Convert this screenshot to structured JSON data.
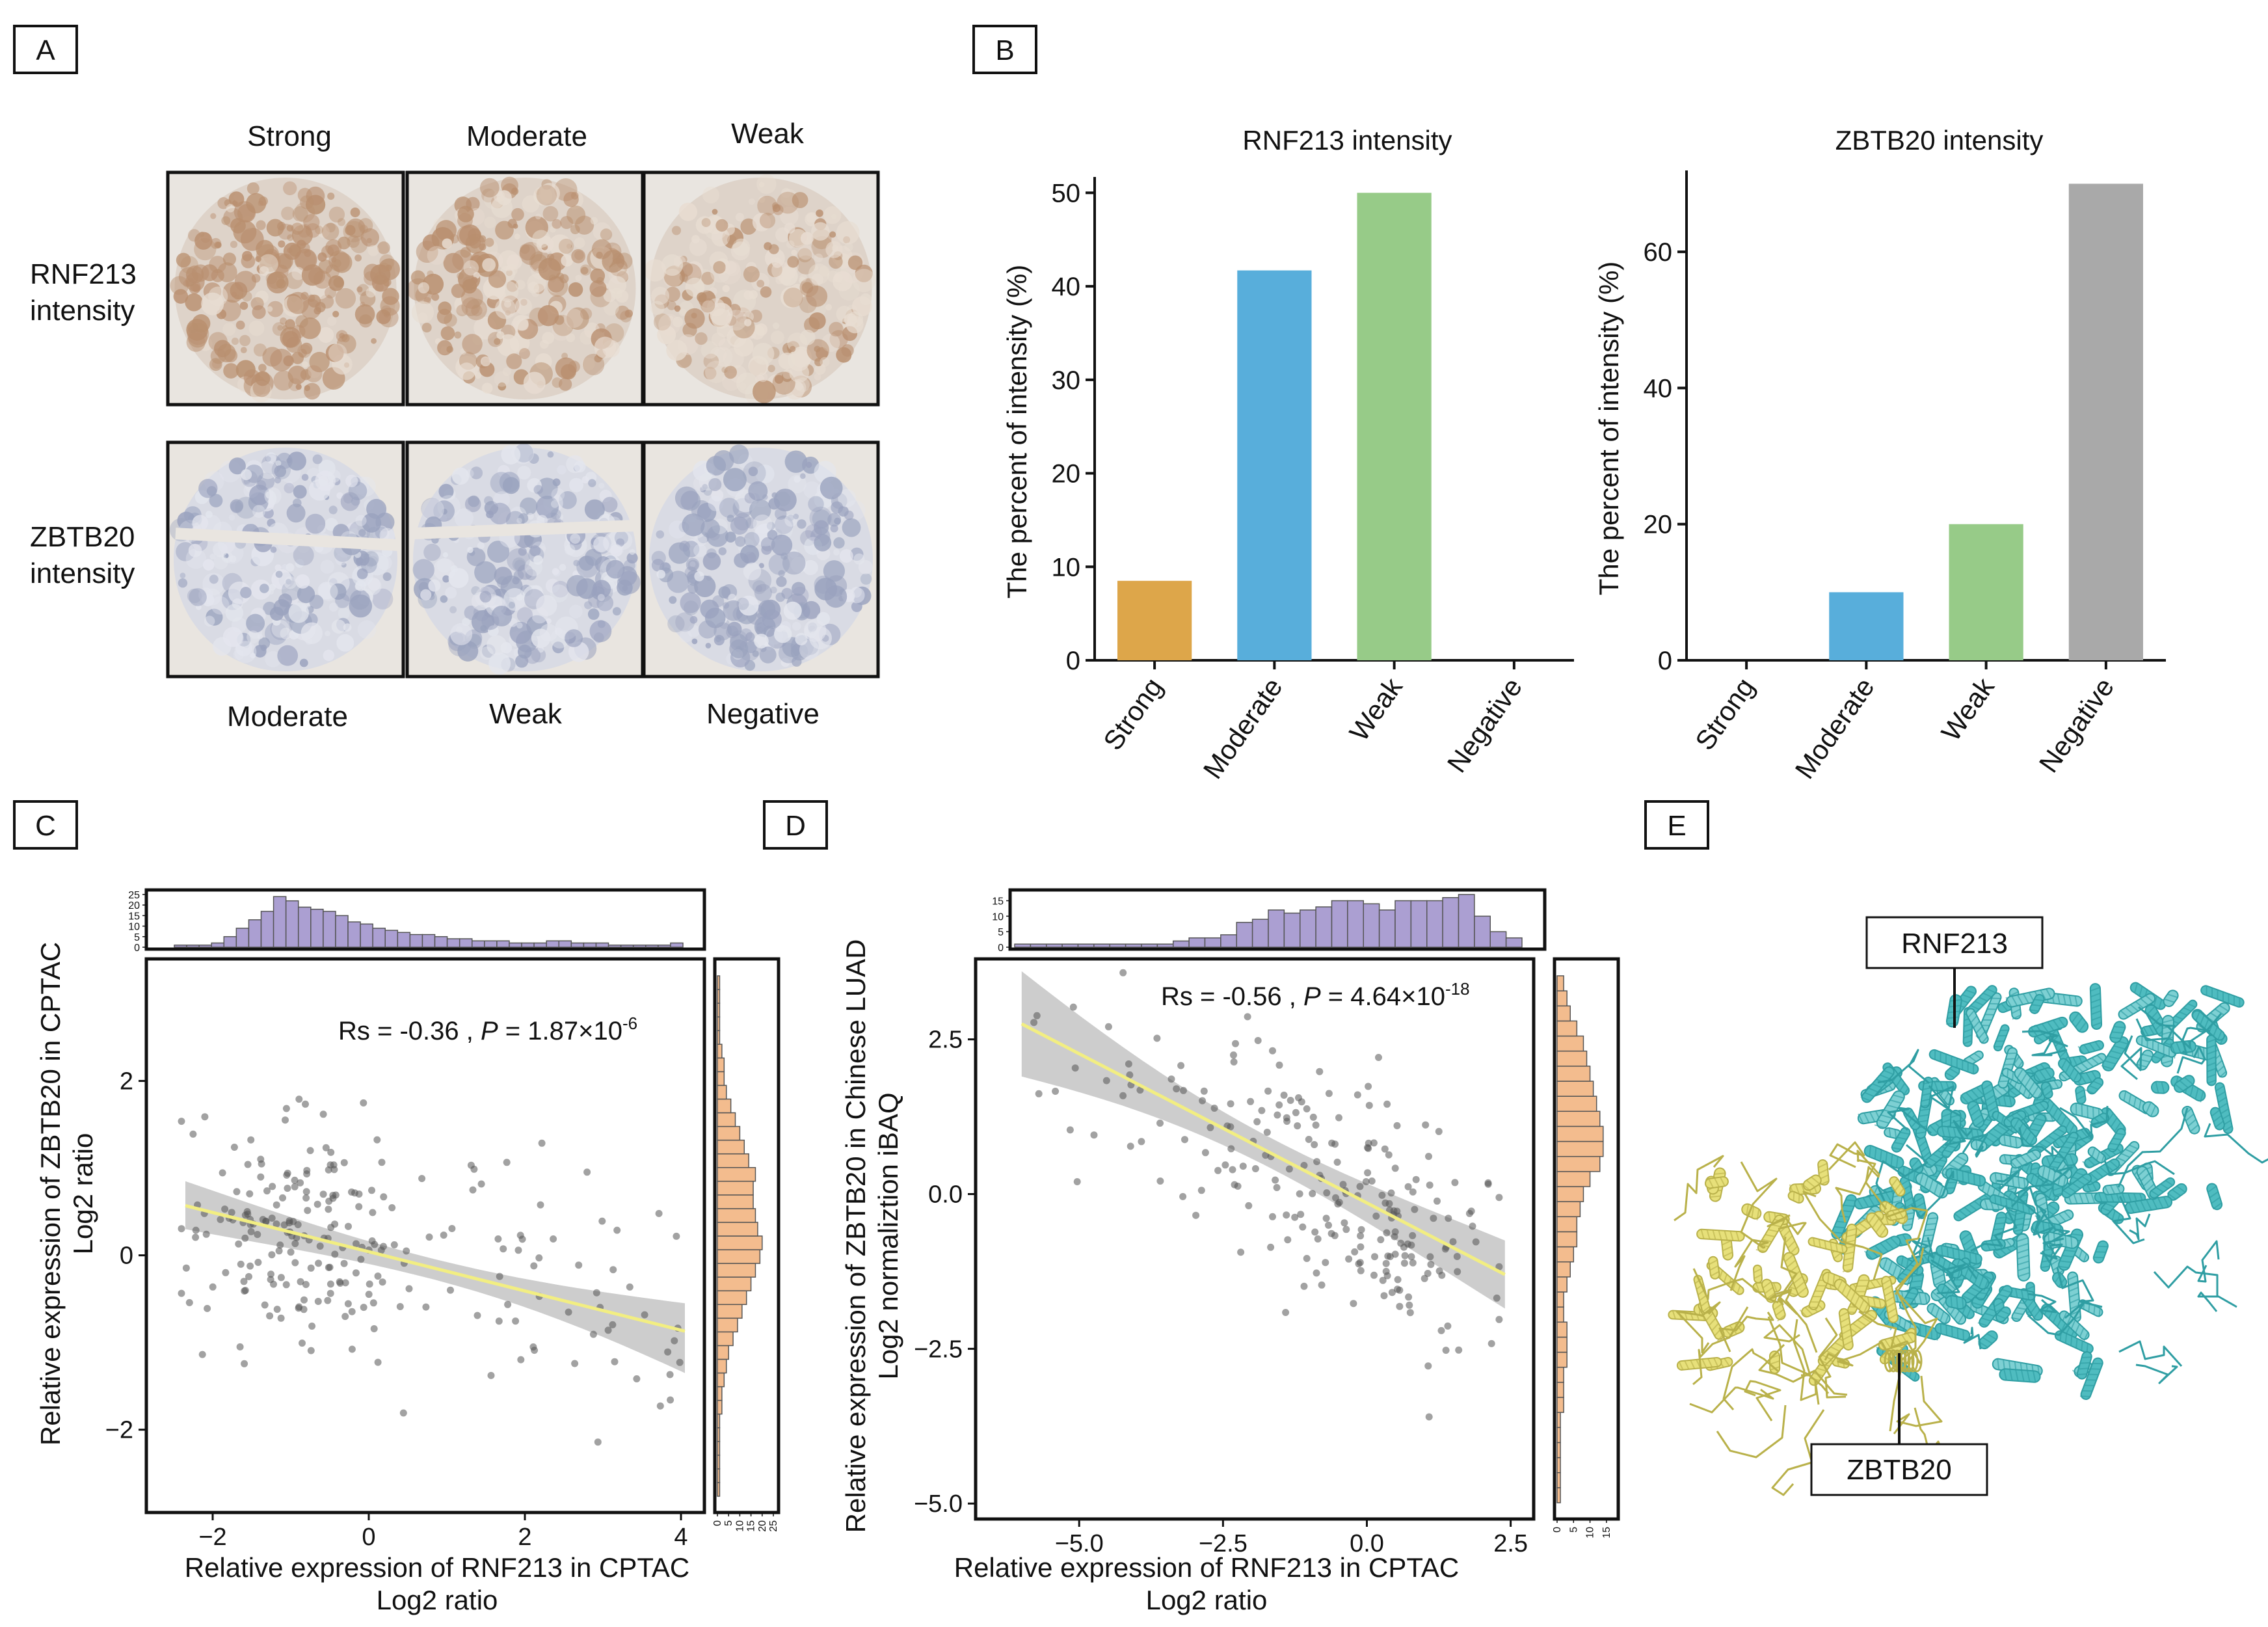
{
  "panel_labels": {
    "a": "A",
    "b": "B",
    "c": "C",
    "d": "D",
    "e": "E"
  },
  "panel_a": {
    "column_labels_top": [
      "Strong",
      "Moderate",
      "Weak"
    ],
    "column_labels_bottom": [
      "Moderate",
      "Weak",
      "Negative"
    ],
    "row_labels": [
      [
        "RNF213",
        "intensity"
      ],
      [
        "ZBTB20",
        "intensity"
      ]
    ],
    "colors": {
      "rnf213_stain": "#b98f6f",
      "zbtb20_stain": "#9aa2be",
      "background": "#e9e5e0"
    }
  },
  "chart_data": [
    {
      "type": "bar",
      "panel": "B-left",
      "title": "RNF213 intensity",
      "categories": [
        "Strong",
        "Moderate",
        "Weak",
        "Negative"
      ],
      "values": [
        8.5,
        41.7,
        50.0,
        0
      ],
      "colors": [
        "#dda64a",
        "#58aedb",
        "#97cb88",
        "#a9a9a9"
      ],
      "ylabel": "The percent of intensity (%)",
      "ylim": [
        0,
        51
      ],
      "yticks": [
        "0",
        "10",
        "20",
        "30",
        "40",
        "50"
      ]
    },
    {
      "type": "bar",
      "panel": "B-right",
      "title": "ZBTB20 intensity",
      "categories": [
        "Strong",
        "Moderate",
        "Weak",
        "Negative"
      ],
      "values": [
        0,
        10,
        20,
        70
      ],
      "colors": [
        "#dda64a",
        "#58aedb",
        "#97cb88",
        "#a9a9a9"
      ],
      "ylabel": "The percent of intensity (%)",
      "ylim": [
        0,
        71
      ],
      "yticks": [
        "0",
        "20",
        "40",
        "60"
      ]
    },
    {
      "type": "scatter",
      "panel": "C",
      "xlabel_lines": [
        "Relative  expression of RNF213 in CPTAC",
        "Log2 ratio"
      ],
      "ylabel_lines": [
        "Relative  expression of ZBTB20 in CPTAC",
        "Log2 ratio"
      ],
      "xlim": [
        -2.85,
        4.3
      ],
      "ylim": [
        -2.95,
        3.4
      ],
      "xticks": [
        "-2",
        "0",
        "2",
        "4"
      ],
      "yticks": [
        "-2",
        "0",
        "2"
      ],
      "annotation": {
        "prefix": "Rs = -0.36 , ",
        "p_label": "P",
        "p_mid": " = 1.87×10",
        "p_exp": "-6"
      },
      "fit_line": {
        "x": [
          -2.35,
          4.05
        ],
        "y": [
          0.57,
          -0.87
        ]
      },
      "band": {
        "upper": [
          0.85,
          -0.55
        ],
        "lower": [
          0.3,
          -1.35
        ]
      },
      "marginal_x_ticks": [
        "25",
        "20",
        "15",
        "10",
        "5",
        "0"
      ],
      "marginal_y_ticks": [
        "0",
        "5",
        "10",
        "15",
        "20",
        "25"
      ],
      "marginal_x_counts": [
        1,
        1,
        1,
        2,
        5,
        9,
        13,
        17,
        24,
        22,
        19,
        18,
        17,
        15,
        12,
        11,
        9,
        8,
        7,
        6,
        6,
        5,
        4,
        4,
        3,
        3,
        3,
        2,
        2,
        2,
        3,
        3,
        2,
        2,
        2,
        1,
        1,
        1,
        1,
        1,
        2
      ],
      "marginal_y_counts": [
        1,
        1,
        1,
        1,
        1,
        1,
        2,
        2,
        3,
        4,
        5,
        7,
        9,
        11,
        13,
        15,
        17,
        19,
        20,
        18,
        17,
        16,
        16,
        17,
        14,
        12,
        10,
        8,
        6,
        4,
        3,
        3,
        2,
        1,
        1,
        1,
        1,
        1
      ],
      "marker_color": "#555555",
      "line_color": "#f2ee82",
      "band_color": "#c4c4c4",
      "hist_color": "#ab9fd2",
      "hist_y_color": "#f3bc8e"
    },
    {
      "type": "scatter",
      "panel": "D",
      "xlabel_lines": [
        "Relative  expression of RNF213 in CPTAC",
        "Log2 ratio"
      ],
      "ylabel_lines": [
        "Relative  expression of ZBTB20 in Chinese LUAD",
        "Log2 normaliztion iBAQ"
      ],
      "xlim": [
        -6.8,
        2.9
      ],
      "ylim": [
        -5.25,
        3.8
      ],
      "xticks": [
        "-5.0",
        "-2.5",
        "0.0",
        "2.5"
      ],
      "yticks": [
        "-5.0",
        "-2.5",
        "0.0",
        "2.5"
      ],
      "annotation": {
        "prefix": "Rs = -0.56 , ",
        "p_label": "P",
        "p_mid": " = 4.64×10",
        "p_exp": "-18"
      },
      "fit_line": {
        "x": [
          -6.0,
          2.4
        ],
        "y": [
          2.75,
          -1.3
        ]
      },
      "band": {
        "upper": [
          3.6,
          -0.75
        ],
        "lower": [
          1.9,
          -1.85
        ]
      },
      "marginal_x_ticks": [
        "15",
        "10",
        "5",
        "0"
      ],
      "marginal_y_ticks": [
        "0",
        "5",
        "10",
        "15"
      ],
      "marginal_x_counts": [
        1,
        1,
        1,
        1,
        1,
        1,
        1,
        1,
        1,
        1,
        2,
        3,
        3,
        4,
        8,
        9,
        12,
        11,
        12,
        13,
        15,
        15,
        14,
        12,
        15,
        15,
        15,
        16,
        17,
        10,
        5,
        3
      ],
      "marginal_y_counts": [
        1,
        1,
        1,
        1,
        1,
        1,
        2,
        2,
        2,
        3,
        3,
        3,
        2,
        2,
        3,
        4,
        5,
        6,
        6,
        7,
        8,
        10,
        13,
        14,
        14,
        13,
        12,
        11,
        10,
        9,
        8,
        6,
        4,
        3,
        2
      ],
      "marker_color": "#555555",
      "line_color": "#f2ee82",
      "band_color": "#c4c4c4",
      "hist_color": "#ab9fd2",
      "hist_y_color": "#f3bc8e"
    }
  ],
  "panel_e": {
    "label_top": "RNF213",
    "label_bottom": "ZBTB20",
    "colors": {
      "rnf213": "#4fbcc0",
      "rnf213_dark": "#2f9ea3",
      "zbtb20": "#e7e07a",
      "zbtb20_dark": "#b9b14a"
    }
  }
}
